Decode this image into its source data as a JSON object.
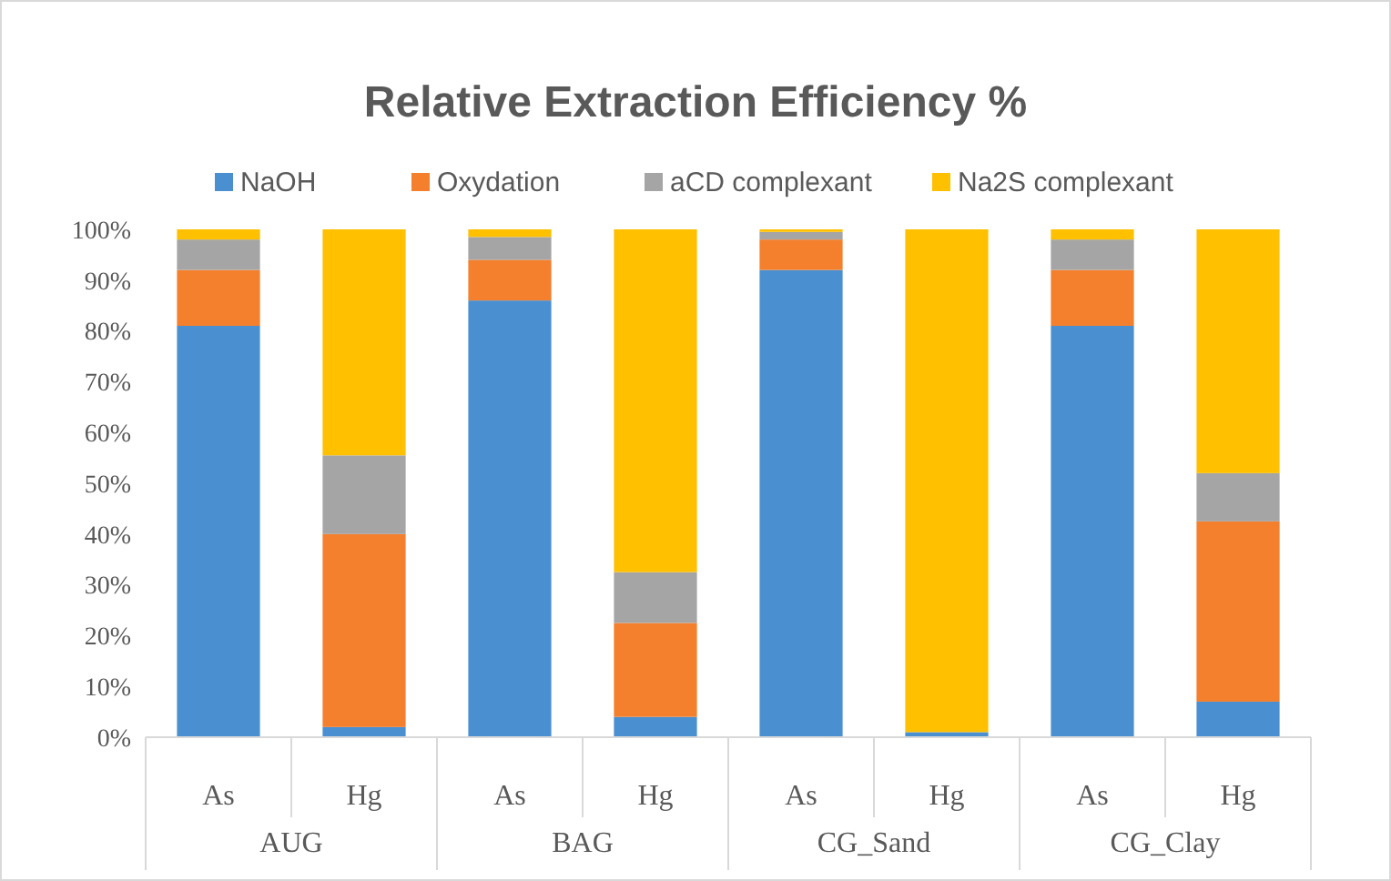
{
  "chart_data": {
    "type": "bar",
    "title": "Relative Extraction Efficiency %",
    "stacked": true,
    "categories": [
      "As",
      "Hg",
      "As",
      "Hg",
      "As",
      "Hg",
      "As",
      "Hg"
    ],
    "series": [
      {
        "name": "NaOH",
        "color": "#4a90d0",
        "values": [
          81,
          2,
          86,
          4,
          92,
          1,
          81,
          7
        ]
      },
      {
        "name": "Oxydation",
        "color": "#f47f2c",
        "values": [
          11,
          38,
          8,
          18.5,
          6,
          0,
          11,
          35.5
        ]
      },
      {
        "name": "aCD complexant",
        "color": "#a5a5a5",
        "values": [
          6,
          15.5,
          4.5,
          10,
          1.5,
          0,
          6,
          9.5
        ]
      },
      {
        "name": "Na2S complexant",
        "color": "#ffc000",
        "values": [
          2,
          44.5,
          1.5,
          67.5,
          0.5,
          99,
          2,
          48
        ]
      }
    ],
    "ylim": [
      0,
      100
    ],
    "yticks": [
      {
        "value": 0,
        "label": "0%"
      },
      {
        "value": 10,
        "label": "10%"
      },
      {
        "value": 20,
        "label": "20%"
      },
      {
        "value": 30,
        "label": "30%"
      },
      {
        "value": 40,
        "label": "40%"
      },
      {
        "value": 50,
        "label": "50%"
      },
      {
        "value": 60,
        "label": "60%"
      },
      {
        "value": 70,
        "label": "70%"
      },
      {
        "value": 80,
        "label": "80%"
      },
      {
        "value": 90,
        "label": "90%"
      },
      {
        "value": 100,
        "label": "100%"
      }
    ],
    "annotations": [
      "AUG",
      "BAG",
      "CG_Sand",
      "CG_Clay"
    ],
    "legend": "top",
    "grid": false
  }
}
